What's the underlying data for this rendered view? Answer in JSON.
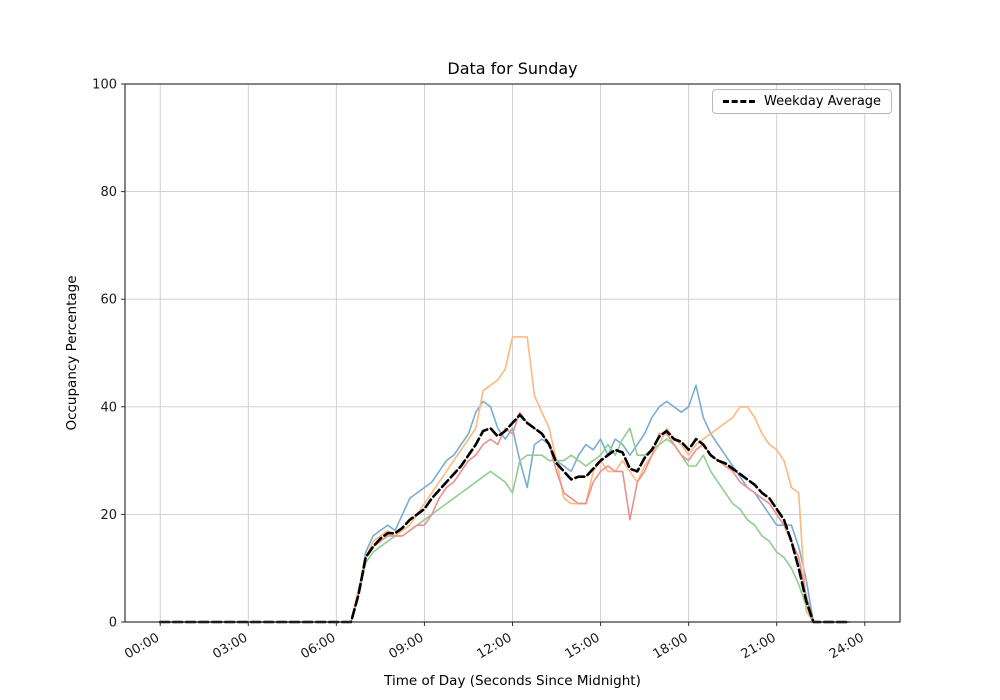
{
  "figure": {
    "title": "Data for Sunday",
    "xlabel": "Time of Day (Seconds Since Midnight)",
    "ylabel": "Occupancy Percentage"
  },
  "legend": {
    "position": "upper-right",
    "items": [
      {
        "label": "Weekday Average",
        "style": "dashed",
        "color": "#000000"
      }
    ]
  },
  "chart_data": {
    "type": "line",
    "title": "Data for Sunday",
    "xlabel": "Time of Day (Seconds Since Midnight)",
    "ylabel": "Occupancy Percentage",
    "grid": true,
    "legend_position": "upper-right",
    "xlim_hours": [
      -1.2,
      25.2
    ],
    "ylim": [
      0,
      100
    ],
    "x_tick_hours": [
      0,
      3,
      6,
      9,
      12,
      15,
      18,
      21,
      24
    ],
    "x_tick_labels": [
      "00:00",
      "03:00",
      "06:00",
      "09:00",
      "12:00",
      "15:00",
      "18:00",
      "21:00",
      "24:00"
    ],
    "y_ticks": [
      0,
      20,
      40,
      60,
      80,
      100
    ],
    "style": {
      "grid_color": "#cccccc",
      "spine_color": "#333333",
      "background": "#ffffff"
    },
    "x_hours": [
      0,
      0.25,
      0.5,
      0.75,
      1,
      1.25,
      1.5,
      1.75,
      2,
      2.25,
      2.5,
      2.75,
      3,
      3.25,
      3.5,
      3.75,
      4,
      4.25,
      4.5,
      4.75,
      5,
      5.25,
      5.5,
      5.75,
      6,
      6.25,
      6.5,
      6.75,
      7,
      7.25,
      7.5,
      7.75,
      8,
      8.25,
      8.5,
      8.75,
      9,
      9.25,
      9.5,
      9.75,
      10,
      10.25,
      10.5,
      10.75,
      11,
      11.25,
      11.5,
      11.75,
      12,
      12.25,
      12.5,
      12.75,
      13,
      13.25,
      13.5,
      13.75,
      14,
      14.25,
      14.5,
      14.75,
      15,
      15.25,
      15.5,
      15.75,
      16,
      16.25,
      16.5,
      16.75,
      17,
      17.25,
      17.5,
      17.75,
      18,
      18.25,
      18.5,
      18.75,
      19,
      19.25,
      19.5,
      19.75,
      20,
      20.25,
      20.5,
      20.75,
      21,
      21.25,
      21.5,
      21.75,
      22,
      22.25,
      22.5,
      22.75,
      23,
      23.25,
      23.5
    ],
    "series": [
      {
        "name": "line-blue",
        "color": "#79add2",
        "width": 1.6,
        "dash": null,
        "values": [
          0,
          0,
          0,
          0,
          0,
          0,
          0,
          0,
          0,
          0,
          0,
          0,
          0,
          0,
          0,
          0,
          0,
          0,
          0,
          0,
          0,
          0,
          0,
          0,
          0,
          0,
          0,
          5,
          13,
          16,
          17,
          18,
          17,
          20,
          23,
          24,
          25,
          26,
          28,
          30,
          31,
          33,
          35,
          39,
          41,
          40,
          36,
          34,
          36,
          30,
          25,
          33,
          34,
          33,
          30,
          29,
          28,
          31,
          33,
          32,
          34,
          31,
          34,
          33,
          31,
          33,
          35,
          38,
          40,
          41,
          40,
          39,
          40,
          44,
          38,
          35,
          33,
          31,
          29,
          27,
          25,
          24,
          22,
          20,
          18,
          18,
          18,
          14,
          8,
          0,
          0,
          0,
          0,
          0,
          0
        ]
      },
      {
        "name": "line-orange",
        "color": "#fdb97e",
        "width": 1.6,
        "dash": null,
        "values": [
          0,
          0,
          0,
          0,
          0,
          0,
          0,
          0,
          0,
          0,
          0,
          0,
          0,
          0,
          0,
          0,
          0,
          0,
          0,
          0,
          0,
          0,
          0,
          0,
          0,
          0,
          0,
          6,
          12,
          15,
          16,
          17,
          16,
          17,
          18,
          20,
          22,
          24,
          26,
          28,
          30,
          32,
          34,
          36,
          43,
          44,
          45,
          47,
          53,
          53,
          53,
          42,
          39,
          36,
          30,
          23,
          22,
          22,
          22,
          28,
          30,
          28,
          28,
          30,
          28,
          26,
          29,
          31,
          33,
          36,
          34,
          33,
          31,
          33,
          34,
          35,
          36,
          37,
          38,
          40,
          40,
          38,
          35,
          33,
          32,
          30,
          25,
          24,
          2,
          0,
          0,
          0,
          0,
          0,
          0
        ]
      },
      {
        "name": "line-green",
        "color": "#8fce8f",
        "width": 1.6,
        "dash": null,
        "values": [
          0,
          0,
          0,
          0,
          0,
          0,
          0,
          0,
          0,
          0,
          0,
          0,
          0,
          0,
          0,
          0,
          0,
          0,
          0,
          0,
          0,
          0,
          0,
          0,
          0,
          0,
          0,
          5,
          11,
          13,
          14,
          15,
          16,
          16,
          17,
          18,
          19,
          20,
          21,
          22,
          23,
          24,
          25,
          26,
          27,
          28,
          27,
          26,
          24,
          30,
          31,
          31,
          31,
          30,
          30,
          30,
          31,
          30,
          29,
          30,
          31,
          33,
          31,
          34,
          36,
          31,
          31,
          32,
          33,
          34,
          33,
          31,
          29,
          29,
          31,
          28,
          26,
          24,
          22,
          21,
          19,
          18,
          16,
          15,
          13,
          12,
          10,
          7,
          3,
          0,
          0,
          0,
          0,
          0,
          0
        ]
      },
      {
        "name": "line-red",
        "color": "#ec908e",
        "width": 1.6,
        "dash": null,
        "values": [
          0,
          0,
          0,
          0,
          0,
          0,
          0,
          0,
          0,
          0,
          0,
          0,
          0,
          0,
          0,
          0,
          0,
          0,
          0,
          0,
          0,
          0,
          0,
          0,
          0,
          0,
          0,
          5,
          12,
          14,
          15,
          16,
          16,
          16,
          17,
          18,
          18,
          20,
          23,
          25,
          26,
          28,
          30,
          31,
          33,
          34,
          33,
          36,
          35,
          39,
          37,
          36,
          35,
          33,
          28,
          24,
          23,
          22,
          22,
          26,
          28,
          29,
          28,
          28,
          19,
          26,
          28,
          31,
          35,
          35,
          33,
          31,
          30,
          32,
          33,
          31,
          30,
          29,
          28,
          26,
          25,
          24,
          23,
          22,
          20,
          18,
          15,
          12,
          5,
          0,
          0,
          0,
          0,
          0,
          0
        ]
      },
      {
        "name": "weekday-average",
        "label": "Weekday Average",
        "color": "#000000",
        "width": 2.6,
        "dash": [
          9,
          4
        ],
        "values": [
          0,
          0,
          0,
          0,
          0,
          0,
          0,
          0,
          0,
          0,
          0,
          0,
          0,
          0,
          0,
          0,
          0,
          0,
          0,
          0,
          0,
          0,
          0,
          0,
          0,
          0,
          0,
          5,
          12,
          14,
          15.5,
          16.5,
          16.5,
          17.5,
          19,
          20,
          21,
          23,
          24.5,
          26,
          27.5,
          29,
          31,
          33,
          35.5,
          36,
          34.5,
          35.5,
          37,
          38.5,
          37,
          36,
          35,
          33,
          29.5,
          28,
          26.5,
          27,
          27,
          28.5,
          30,
          31,
          32,
          31.5,
          28.5,
          28,
          30.5,
          32,
          34.5,
          35.5,
          34,
          33.5,
          32,
          34,
          33,
          31,
          30,
          29.5,
          28.5,
          27.5,
          26.5,
          25.5,
          24,
          23,
          21,
          19,
          15,
          10,
          4,
          0,
          0,
          0,
          0,
          0,
          0
        ]
      }
    ]
  }
}
